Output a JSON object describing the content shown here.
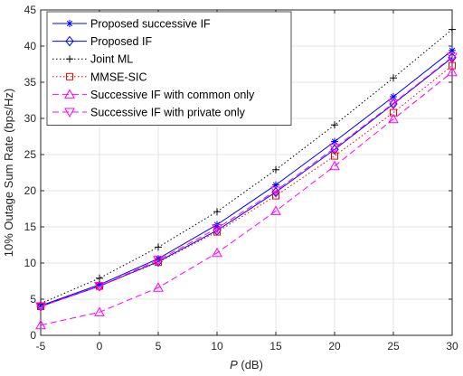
{
  "chart_data": {
    "type": "line",
    "title": "",
    "xlabel_var": "P",
    "xlabel_unit": " (dB)",
    "ylabel": "10% Outage Sum Rate (bps/Hz)",
    "xlim": [
      -5,
      30
    ],
    "ylim": [
      0,
      45
    ],
    "xticks": [
      -5,
      0,
      5,
      10,
      15,
      20,
      25,
      30
    ],
    "yticks": [
      0,
      5,
      10,
      15,
      20,
      25,
      30,
      35,
      40,
      45
    ],
    "grid": true,
    "legend_position": "top-left",
    "x": [
      -5,
      0,
      5,
      10,
      15,
      20,
      25,
      30
    ],
    "series": [
      {
        "name": "Proposed successive IF",
        "color": "#0000ff",
        "dash": "solid",
        "marker": "asterisk",
        "values": [
          4.1,
          7.0,
          10.6,
          15.3,
          20.8,
          26.8,
          33.0,
          39.4
        ]
      },
      {
        "name": "Proposed IF",
        "color": "#0000ff",
        "dash": "solid",
        "marker": "diamond",
        "values": [
          4.0,
          6.8,
          10.2,
          14.5,
          19.8,
          25.7,
          32.0,
          38.4
        ]
      },
      {
        "name": "Joint ML",
        "color": "#000000",
        "dash": "dotted",
        "marker": "plus",
        "values": [
          4.4,
          7.9,
          12.2,
          17.1,
          22.9,
          29.1,
          35.6,
          42.3
        ]
      },
      {
        "name": "MMSE-SIC",
        "color": "#ff0000",
        "dash": "dotted",
        "marker": "square",
        "values": [
          4.0,
          6.8,
          10.1,
          14.3,
          19.3,
          24.8,
          30.8,
          37.3
        ]
      },
      {
        "name": "Successive IF with common only",
        "color": "#ff00ff",
        "dash": "dashed",
        "marker": "triangle-up",
        "values": [
          1.4,
          3.2,
          6.6,
          11.4,
          17.2,
          23.4,
          29.9,
          36.4
        ]
      },
      {
        "name": "Successive IF with private only",
        "color": "#ff00ff",
        "dash": "dashed",
        "marker": "triangle-down",
        "values": [
          4.0,
          6.8,
          10.4,
          14.8,
          20.0,
          25.9,
          32.1,
          38.5
        ]
      }
    ]
  }
}
